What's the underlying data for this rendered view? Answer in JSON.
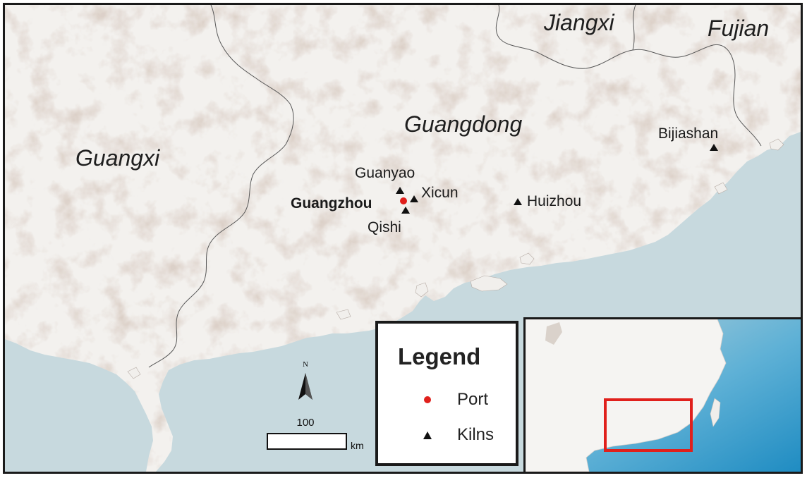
{
  "regions": {
    "guangxi": "Guangxi",
    "guangdong": "Guangdong",
    "jiangxi": "Jiangxi",
    "fujian": "Fujian"
  },
  "ports": [
    {
      "name": "Guangzhou"
    }
  ],
  "kilns": [
    {
      "name": "Guanyao"
    },
    {
      "name": "Xicun"
    },
    {
      "name": "Qishi"
    },
    {
      "name": "Huizhou"
    },
    {
      "name": "Bijiashan"
    }
  ],
  "legend": {
    "title": "Legend",
    "items": [
      {
        "symbol": "dot-icon",
        "label": "Port",
        "color": "#e0201c"
      },
      {
        "symbol": "triangle-icon",
        "label": "Kilns",
        "color": "#111111"
      }
    ]
  },
  "scale": {
    "value": "100",
    "unit": "km"
  },
  "north": {
    "label": "N"
  },
  "colors": {
    "sea": "#c7d9de",
    "land": "#f3f1ee",
    "terrain": "#c9b9ae",
    "highlight": "#e0201c",
    "inset_sea": "#2f97c8"
  }
}
